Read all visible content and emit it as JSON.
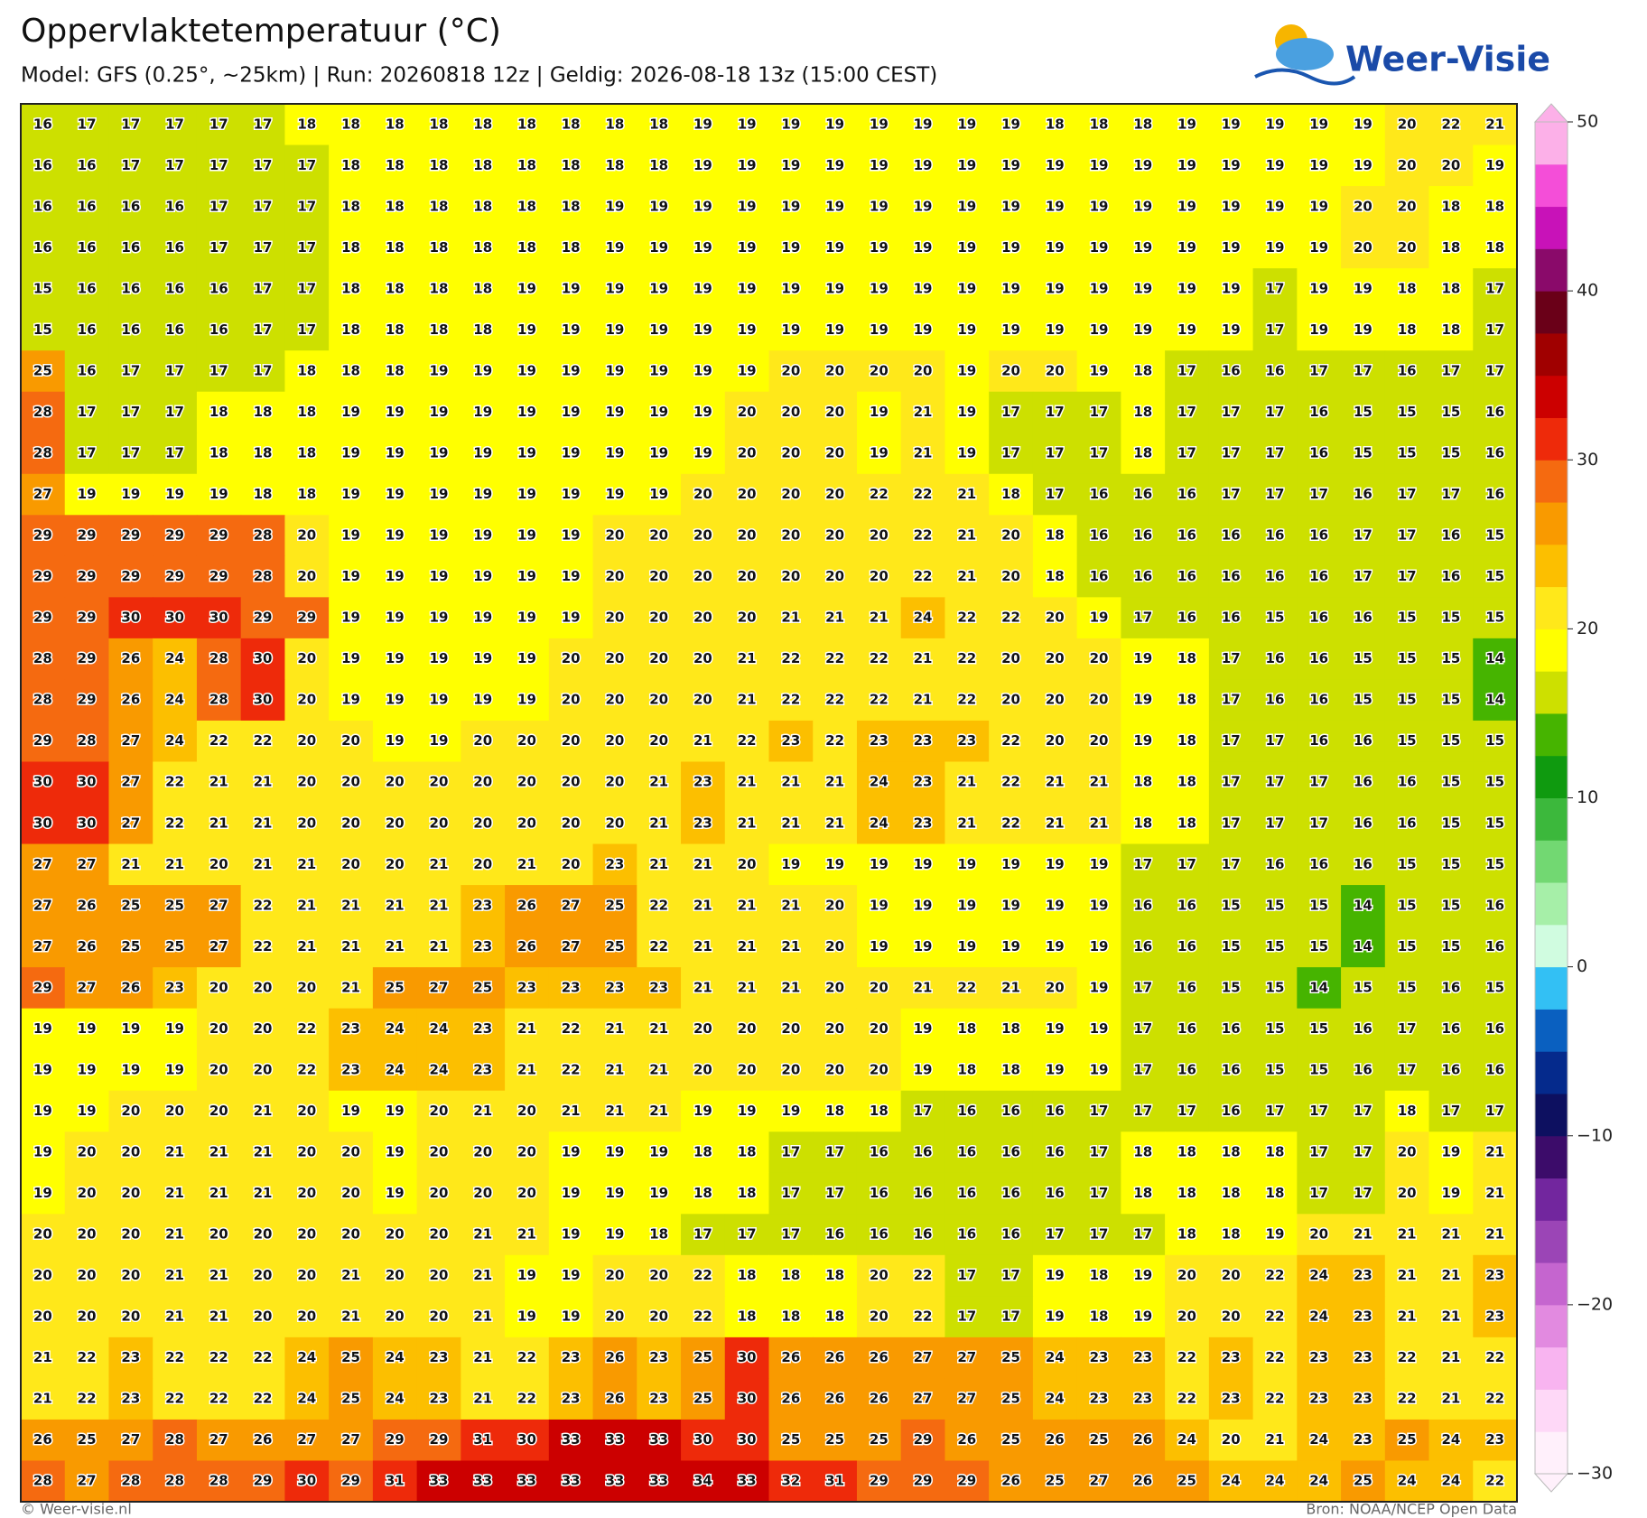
{
  "header": {
    "title": "Oppervlaktetemperatuur (°C)",
    "subtitle": "Model: GFS (0.25°, ~25km)  |  Run: 20260818 12z  |  Geldig: 2026-08-18 13z (15:00 CEST)"
  },
  "logo": "Weer-Visie",
  "grid": {
    "values": [
      [
        16,
        17,
        17,
        17,
        17,
        17,
        18,
        18,
        18,
        18,
        18,
        18,
        18,
        18,
        18,
        19,
        19,
        19,
        19,
        19,
        19,
        19,
        19,
        18,
        18,
        18,
        19,
        19,
        19,
        19,
        19,
        20,
        22,
        21
      ],
      [
        16,
        16,
        17,
        17,
        17,
        17,
        17,
        18,
        18,
        18,
        18,
        18,
        18,
        18,
        18,
        19,
        19,
        19,
        19,
        19,
        19,
        19,
        19,
        19,
        19,
        19,
        19,
        19,
        19,
        19,
        19,
        20,
        20,
        19
      ],
      [
        16,
        16,
        16,
        16,
        17,
        17,
        17,
        18,
        18,
        18,
        18,
        18,
        18,
        19,
        19,
        19,
        19,
        19,
        19,
        19,
        19,
        19,
        19,
        19,
        19,
        19,
        19,
        19,
        19,
        19,
        20,
        20,
        18,
        18
      ],
      [
        16,
        16,
        16,
        16,
        17,
        17,
        17,
        18,
        18,
        18,
        18,
        18,
        18,
        19,
        19,
        19,
        19,
        19,
        19,
        19,
        19,
        19,
        19,
        19,
        19,
        19,
        19,
        19,
        19,
        19,
        20,
        20,
        18,
        18
      ],
      [
        15,
        16,
        16,
        16,
        16,
        17,
        17,
        18,
        18,
        18,
        18,
        19,
        19,
        19,
        19,
        19,
        19,
        19,
        19,
        19,
        19,
        19,
        19,
        19,
        19,
        19,
        19,
        19,
        17,
        19,
        19,
        18,
        18,
        17
      ],
      [
        15,
        16,
        16,
        16,
        16,
        17,
        17,
        18,
        18,
        18,
        18,
        19,
        19,
        19,
        19,
        19,
        19,
        19,
        19,
        19,
        19,
        19,
        19,
        19,
        19,
        19,
        19,
        19,
        17,
        19,
        19,
        18,
        18,
        17
      ],
      [
        25,
        16,
        17,
        17,
        17,
        17,
        18,
        18,
        18,
        19,
        19,
        19,
        19,
        19,
        19,
        19,
        19,
        20,
        20,
        20,
        20,
        19,
        20,
        20,
        19,
        18,
        17,
        16,
        16,
        17,
        17,
        16,
        17,
        17
      ],
      [
        28,
        17,
        17,
        17,
        18,
        18,
        18,
        19,
        19,
        19,
        19,
        19,
        19,
        19,
        19,
        19,
        20,
        20,
        20,
        19,
        21,
        19,
        17,
        17,
        17,
        18,
        17,
        17,
        17,
        16,
        15,
        15,
        15,
        16
      ],
      [
        28,
        17,
        17,
        17,
        18,
        18,
        18,
        19,
        19,
        19,
        19,
        19,
        19,
        19,
        19,
        19,
        20,
        20,
        20,
        19,
        21,
        19,
        17,
        17,
        17,
        18,
        17,
        17,
        17,
        16,
        15,
        15,
        15,
        16
      ],
      [
        27,
        19,
        19,
        19,
        19,
        18,
        18,
        19,
        19,
        19,
        19,
        19,
        19,
        19,
        19,
        20,
        20,
        20,
        20,
        22,
        22,
        21,
        18,
        17,
        16,
        16,
        16,
        17,
        17,
        17,
        16,
        17,
        17,
        16
      ],
      [
        29,
        29,
        29,
        29,
        29,
        28,
        20,
        19,
        19,
        19,
        19,
        19,
        19,
        20,
        20,
        20,
        20,
        20,
        20,
        20,
        22,
        21,
        20,
        18,
        16,
        16,
        16,
        16,
        16,
        16,
        17,
        17,
        16,
        15
      ],
      [
        29,
        29,
        29,
        29,
        29,
        28,
        20,
        19,
        19,
        19,
        19,
        19,
        19,
        20,
        20,
        20,
        20,
        20,
        20,
        20,
        22,
        21,
        20,
        18,
        16,
        16,
        16,
        16,
        16,
        16,
        17,
        17,
        16,
        15
      ],
      [
        29,
        29,
        30,
        30,
        30,
        29,
        29,
        19,
        19,
        19,
        19,
        19,
        19,
        20,
        20,
        20,
        20,
        21,
        21,
        21,
        24,
        22,
        22,
        20,
        19,
        17,
        16,
        16,
        15,
        16,
        16,
        15,
        15,
        15
      ],
      [
        28,
        29,
        26,
        24,
        28,
        30,
        20,
        19,
        19,
        19,
        19,
        19,
        20,
        20,
        20,
        20,
        21,
        22,
        22,
        22,
        21,
        22,
        20,
        20,
        20,
        19,
        18,
        17,
        16,
        16,
        15,
        15,
        15,
        14
      ],
      [
        28,
        29,
        26,
        24,
        28,
        30,
        20,
        19,
        19,
        19,
        19,
        19,
        20,
        20,
        20,
        20,
        21,
        22,
        22,
        22,
        21,
        22,
        20,
        20,
        20,
        19,
        18,
        17,
        16,
        16,
        15,
        15,
        15,
        14
      ],
      [
        29,
        28,
        27,
        24,
        22,
        22,
        20,
        20,
        19,
        19,
        20,
        20,
        20,
        20,
        20,
        21,
        22,
        23,
        22,
        23,
        23,
        23,
        22,
        20,
        20,
        19,
        18,
        17,
        17,
        16,
        16,
        15,
        15,
        15
      ],
      [
        30,
        30,
        27,
        22,
        21,
        21,
        20,
        20,
        20,
        20,
        20,
        20,
        20,
        20,
        21,
        23,
        21,
        21,
        21,
        24,
        23,
        21,
        22,
        21,
        21,
        18,
        18,
        17,
        17,
        17,
        16,
        16,
        15,
        15
      ],
      [
        30,
        30,
        27,
        22,
        21,
        21,
        20,
        20,
        20,
        20,
        20,
        20,
        20,
        20,
        21,
        23,
        21,
        21,
        21,
        24,
        23,
        21,
        22,
        21,
        21,
        18,
        18,
        17,
        17,
        17,
        16,
        16,
        15,
        15
      ],
      [
        27,
        27,
        21,
        21,
        20,
        21,
        21,
        20,
        20,
        21,
        20,
        21,
        20,
        23,
        21,
        21,
        20,
        19,
        19,
        19,
        19,
        19,
        19,
        19,
        19,
        17,
        17,
        17,
        16,
        16,
        16,
        15,
        15,
        15
      ],
      [
        27,
        26,
        25,
        25,
        27,
        22,
        21,
        21,
        21,
        21,
        23,
        26,
        27,
        25,
        22,
        21,
        21,
        21,
        20,
        19,
        19,
        19,
        19,
        19,
        19,
        16,
        16,
        15,
        15,
        15,
        14,
        15,
        15,
        16
      ],
      [
        27,
        26,
        25,
        25,
        27,
        22,
        21,
        21,
        21,
        21,
        23,
        26,
        27,
        25,
        22,
        21,
        21,
        21,
        20,
        19,
        19,
        19,
        19,
        19,
        19,
        16,
        16,
        15,
        15,
        15,
        14,
        15,
        15,
        16
      ],
      [
        29,
        27,
        26,
        23,
        20,
        20,
        20,
        21,
        25,
        27,
        25,
        23,
        23,
        23,
        23,
        21,
        21,
        21,
        20,
        20,
        21,
        22,
        21,
        20,
        19,
        17,
        16,
        15,
        15,
        14,
        15,
        15,
        16,
        15
      ],
      [
        19,
        19,
        19,
        19,
        20,
        20,
        22,
        23,
        24,
        24,
        23,
        21,
        22,
        21,
        21,
        20,
        20,
        20,
        20,
        20,
        19,
        18,
        18,
        19,
        19,
        17,
        16,
        16,
        15,
        15,
        16,
        17,
        16,
        16
      ],
      [
        19,
        19,
        19,
        19,
        20,
        20,
        22,
        23,
        24,
        24,
        23,
        21,
        22,
        21,
        21,
        20,
        20,
        20,
        20,
        20,
        19,
        18,
        18,
        19,
        19,
        17,
        16,
        16,
        15,
        15,
        16,
        17,
        16,
        16
      ],
      [
        19,
        19,
        20,
        20,
        20,
        21,
        20,
        19,
        19,
        20,
        21,
        20,
        21,
        21,
        21,
        19,
        19,
        19,
        18,
        18,
        17,
        16,
        16,
        16,
        17,
        17,
        17,
        16,
        17,
        17,
        17,
        18,
        17,
        17
      ],
      [
        19,
        20,
        20,
        21,
        21,
        21,
        20,
        20,
        19,
        20,
        20,
        20,
        19,
        19,
        19,
        18,
        18,
        17,
        17,
        16,
        16,
        16,
        16,
        16,
        17,
        18,
        18,
        18,
        18,
        17,
        17,
        20,
        19,
        21
      ],
      [
        19,
        20,
        20,
        21,
        21,
        21,
        20,
        20,
        19,
        20,
        20,
        20,
        19,
        19,
        19,
        18,
        18,
        17,
        17,
        16,
        16,
        16,
        16,
        16,
        17,
        18,
        18,
        18,
        18,
        17,
        17,
        20,
        19,
        21
      ],
      [
        20,
        20,
        20,
        21,
        20,
        20,
        20,
        20,
        20,
        20,
        21,
        21,
        19,
        19,
        18,
        17,
        17,
        17,
        16,
        16,
        16,
        16,
        16,
        17,
        17,
        17,
        18,
        18,
        19,
        20,
        21,
        21,
        21,
        21
      ],
      [
        20,
        20,
        20,
        21,
        21,
        20,
        20,
        21,
        20,
        20,
        21,
        19,
        19,
        20,
        20,
        22,
        18,
        18,
        18,
        20,
        22,
        17,
        17,
        19,
        18,
        19,
        20,
        20,
        22,
        24,
        23,
        21,
        21,
        23
      ],
      [
        20,
        20,
        20,
        21,
        21,
        20,
        20,
        21,
        20,
        20,
        21,
        19,
        19,
        20,
        20,
        22,
        18,
        18,
        18,
        20,
        22,
        17,
        17,
        19,
        18,
        19,
        20,
        20,
        22,
        24,
        23,
        21,
        21,
        23
      ],
      [
        21,
        22,
        23,
        22,
        22,
        22,
        24,
        25,
        24,
        23,
        21,
        22,
        23,
        26,
        23,
        25,
        30,
        26,
        26,
        26,
        27,
        27,
        25,
        24,
        23,
        23,
        22,
        23,
        22,
        23,
        23,
        22,
        21,
        22
      ],
      [
        21,
        22,
        23,
        22,
        22,
        22,
        24,
        25,
        24,
        23,
        21,
        22,
        23,
        26,
        23,
        25,
        30,
        26,
        26,
        26,
        27,
        27,
        25,
        24,
        23,
        23,
        22,
        23,
        22,
        23,
        23,
        22,
        21,
        22
      ],
      [
        26,
        25,
        27,
        28,
        27,
        26,
        27,
        27,
        29,
        29,
        31,
        30,
        33,
        33,
        33,
        30,
        30,
        25,
        25,
        25,
        29,
        26,
        25,
        26,
        25,
        26,
        24,
        20,
        21,
        24,
        23,
        25,
        24,
        23
      ],
      [
        28,
        27,
        28,
        28,
        28,
        29,
        30,
        29,
        31,
        33,
        33,
        33,
        33,
        33,
        33,
        34,
        33,
        32,
        31,
        29,
        29,
        29,
        26,
        25,
        27,
        26,
        25,
        24,
        24,
        24,
        25,
        24,
        24,
        22
      ]
    ]
  },
  "colorbar": {
    "lim": [
      -30,
      50
    ],
    "ticks": [
      50,
      40,
      30,
      20,
      10,
      0,
      {
        "value": -10,
        "label": "−10"
      },
      {
        "value": -20,
        "label": "−20"
      },
      {
        "value": -30,
        "label": "−30"
      }
    ],
    "colors": [
      "#fff0fb",
      "#fed8f7",
      "#f8b4f0",
      "#e28ae0",
      "#c565cf",
      "#9b45b6",
      "#72269e",
      "#3c0c6a",
      "#0d1060",
      "#052a8c",
      "#0a60c0",
      "#33c0f4",
      "#d0fce0",
      "#a6efa8",
      "#72d872",
      "#3cb83c",
      "#0f9a0f",
      "#46b400",
      "#cde000",
      "#ffff00",
      "#ffe81a",
      "#fcbf00",
      "#f99a00",
      "#f56a10",
      "#ee2a0a",
      "#cc0000",
      "#a00000",
      "#6a0018",
      "#8a0a6a",
      "#c812b8",
      "#f44ed8",
      "#fcb0e8"
    ]
  },
  "footer": {
    "left": "© Weer-visie.nl",
    "right": "Bron: NOAA/NCEP Open Data"
  }
}
